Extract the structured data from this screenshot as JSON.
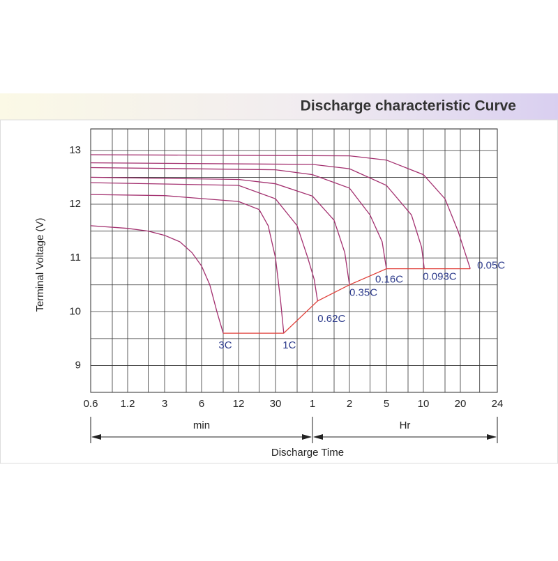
{
  "chart_data": {
    "type": "line",
    "title": "Discharge characteristic Curve",
    "xlabel": "Discharge Time",
    "ylabel": "Terminal Voltage  (V)",
    "x_unit_labels": [
      {
        "value": 0.6,
        "label": "min"
      },
      {
        "value": 60,
        "label": "Hr"
      },
      {
        "value": 1440
      }
    ],
    "x_scale": "log-piecewise",
    "xticks": [
      0.6,
      1.2,
      3,
      6,
      12,
      30,
      {
        "value": 60,
        "label": "1"
      },
      {
        "value": 120,
        "label": "2"
      },
      {
        "value": 300,
        "label": "5"
      },
      {
        "value": 600,
        "label": "10"
      },
      {
        "value": 1200,
        "label": "20"
      },
      {
        "value": 1440,
        "label": "24"
      }
    ],
    "xminor": [
      0.9,
      2,
      4.5,
      9,
      20,
      45,
      90,
      200,
      450,
      900,
      1320
    ],
    "ylim": [
      8.5,
      13.4
    ],
    "yticks": [
      9,
      10,
      11,
      12,
      13
    ],
    "yminor": [
      8.5,
      9.5,
      10.5,
      11.5,
      12.5
    ],
    "grid": true,
    "series": [
      {
        "name": "3C",
        "color": "#a3306f",
        "x": [
          0.6,
          1.2,
          2,
          3,
          4,
          5,
          6,
          7,
          8,
          9
        ],
        "values": [
          11.6,
          11.55,
          11.5,
          11.42,
          11.3,
          11.1,
          10.85,
          10.5,
          10.0,
          9.6
        ]
      },
      {
        "name": "1C",
        "color": "#a3306f",
        "x": [
          0.6,
          3,
          12,
          20,
          25,
          30,
          33,
          35
        ],
        "values": [
          12.18,
          12.16,
          12.05,
          11.9,
          11.6,
          11.0,
          10.2,
          9.6
        ]
      },
      {
        "name": "0.62C",
        "color": "#a3306f",
        "x": [
          0.6,
          12,
          30,
          45,
          55,
          62,
          66
        ],
        "values": [
          12.4,
          12.35,
          12.1,
          11.6,
          11.0,
          10.6,
          10.2
        ]
      },
      {
        "name": "0.35C",
        "color": "#a3306f",
        "x": [
          0.6,
          12,
          30,
          60,
          90,
          110,
          120
        ],
        "values": [
          12.5,
          12.46,
          12.38,
          12.15,
          11.7,
          11.1,
          10.5
        ]
      },
      {
        "name": "0.16C",
        "color": "#a3306f",
        "x": [
          0.6,
          30,
          60,
          120,
          200,
          270,
          300
        ],
        "values": [
          12.68,
          12.64,
          12.55,
          12.3,
          11.8,
          11.3,
          10.8
        ]
      },
      {
        "name": "0.093C",
        "color": "#a3306f",
        "x": [
          0.6,
          60,
          120,
          300,
          480,
          580,
          610
        ],
        "values": [
          12.77,
          12.74,
          12.66,
          12.35,
          11.8,
          11.2,
          10.8
        ]
      },
      {
        "name": "0.05C",
        "color": "#a3306f",
        "x": [
          0.6,
          120,
          300,
          600,
          900,
          1150,
          1260
        ],
        "values": [
          12.92,
          12.9,
          12.82,
          12.55,
          12.1,
          11.5,
          10.8
        ]
      }
    ],
    "cutoff": {
      "color": "#e0403a",
      "x": [
        9,
        35,
        66,
        120,
        300,
        1260
      ],
      "values": [
        9.6,
        9.6,
        10.2,
        10.5,
        10.8,
        10.8
      ]
    }
  }
}
